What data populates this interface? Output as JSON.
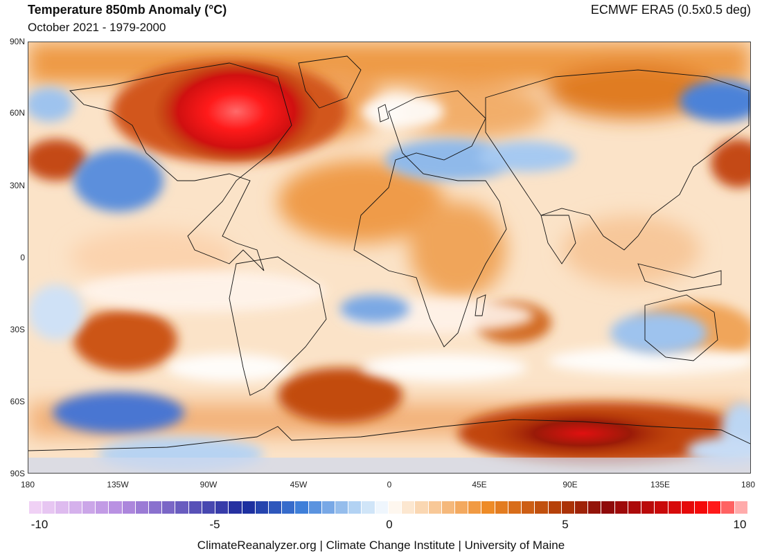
{
  "header": {
    "title": "Temperature 850mb Anomaly (°C)",
    "subtitle": "October 2021 - 1979-2000",
    "source": "ECMWF ERA5 (0.5x0.5 deg)"
  },
  "axes": {
    "lat_labels": [
      "90N",
      "60N",
      "30N",
      "0",
      "30S",
      "60S",
      "90S"
    ],
    "lon_labels": [
      "180",
      "135W",
      "90W",
      "45W",
      "0",
      "45E",
      "90E",
      "135E",
      "180"
    ]
  },
  "colorbar": {
    "min": -10,
    "max": 10,
    "tick_labels": [
      "-10",
      "-5",
      "0",
      "5",
      "10"
    ],
    "colors": {
      "neg_extreme": "#f5d6f7",
      "neg_purple": "#b48be0",
      "neg_deep": "#1a2a9c",
      "neg_mid": "#3f7fd9",
      "neg_light": "#bcd9f5",
      "zero": "#ffffff",
      "pos_light": "#fbdcbc",
      "pos_mid": "#ee8a25",
      "pos_strong": "#b13a06",
      "pos_dark": "#8b0a0a",
      "pos_extreme": "#ff0a0a"
    }
  },
  "map_features": {
    "warm_anomalies": [
      "Canada / Hudson Bay",
      "Antarctic East",
      "South Atlantic",
      "South Pacific",
      "North Atlantic",
      "North Pacific"
    ],
    "cool_anomalies": [
      "Western North America",
      "Mediterranean / Europe",
      "Siberia East",
      "Southern Pacific near Antarctica",
      "Australia",
      "South Atlantic west of Africa"
    ]
  },
  "footer": {
    "credit": "ClimateReanalyzer.org | Climate Change Institute | University of Maine"
  }
}
